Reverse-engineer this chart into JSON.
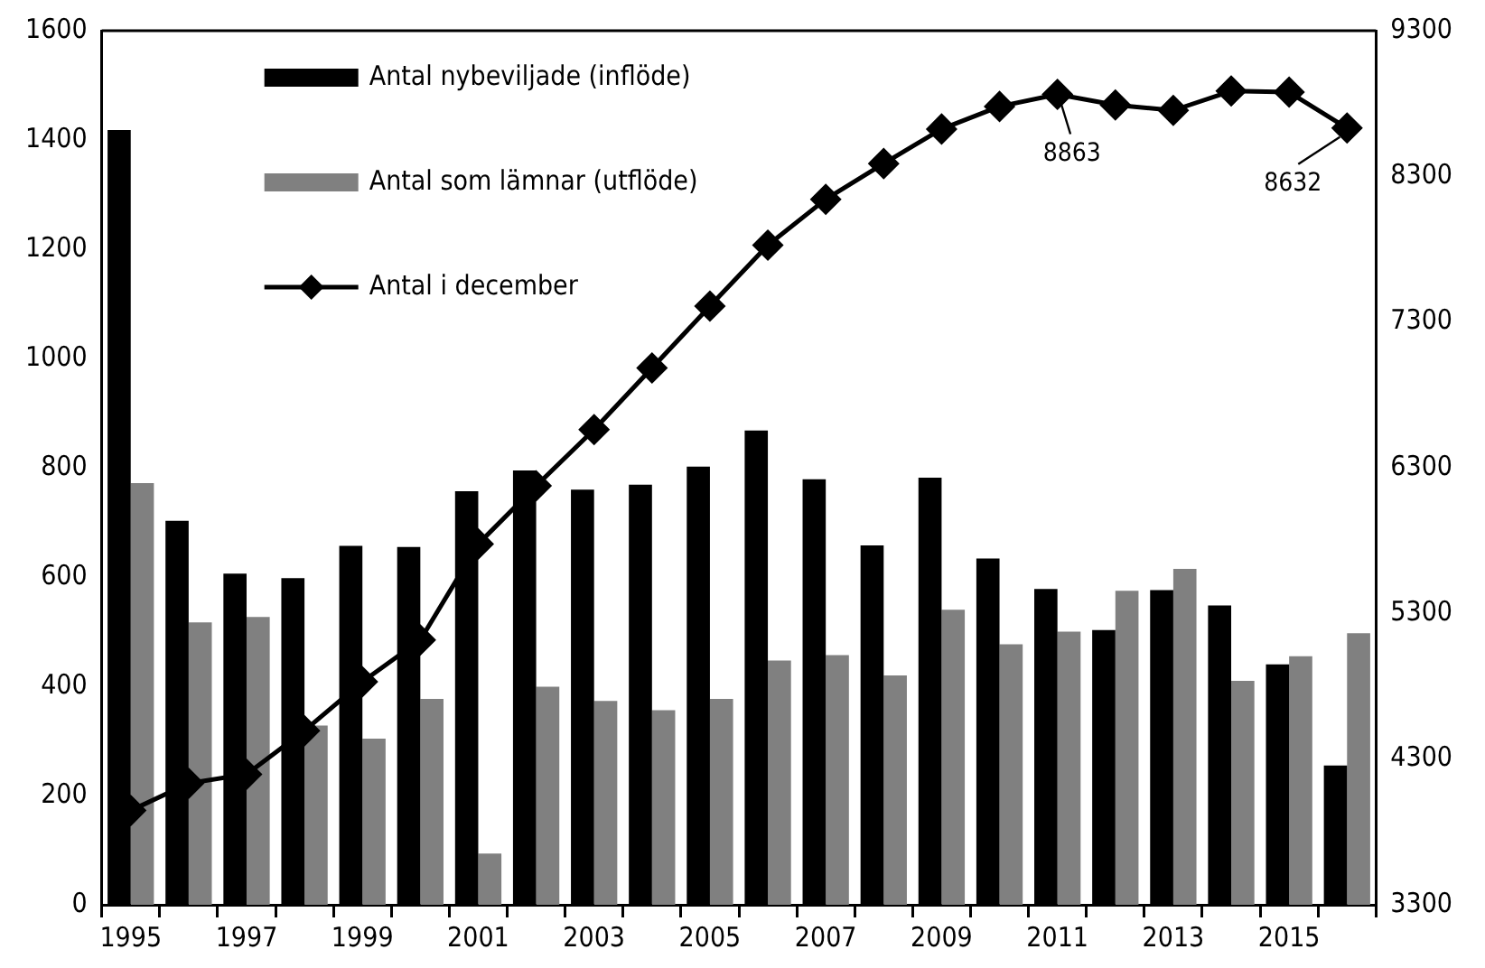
{
  "chart_data": {
    "type": "bar",
    "categories": [
      "1995",
      null,
      "1997",
      null,
      "1999",
      null,
      "2001",
      null,
      "2003",
      null,
      "2005",
      null,
      "2007",
      null,
      "2009",
      null,
      "2011",
      null,
      "2013",
      null,
      "2015",
      null
    ],
    "series": [
      {
        "name": "Antal nybeviljade (inflöde)",
        "color": "#000000",
        "values": [
          1418,
          703,
          606,
          598,
          657,
          655,
          757,
          795,
          760,
          769,
          802,
          868,
          779,
          658,
          782,
          634,
          578,
          503,
          576,
          548,
          440,
          255
        ]
      },
      {
        "name": "Antal som lämnar (utflöde)",
        "color": "#808080",
        "values": [
          772,
          517,
          527,
          328,
          304,
          377,
          94,
          399,
          373,
          356,
          377,
          447,
          457,
          420,
          540,
          477,
          500,
          575,
          615,
          410,
          455,
          497
        ]
      },
      {
        "name": "Antal i december",
        "type": "line",
        "axis": "y2",
        "color": "#000000",
        "marker": "diamond",
        "line_style": "solid",
        "values": [
          3947,
          4134,
          4196,
          4495,
          4831,
          5118,
          5777,
          6176,
          6562,
          6985,
          7409,
          7828,
          8143,
          8388,
          8625,
          8780,
          8863,
          8790,
          8753,
          8886,
          8878,
          8632
        ],
        "value_labels": [
          null,
          null,
          null,
          null,
          null,
          null,
          null,
          null,
          null,
          null,
          null,
          null,
          null,
          null,
          null,
          null,
          "8863",
          null,
          null,
          null,
          null,
          "8632"
        ]
      }
    ],
    "ylim": [
      0,
      1600
    ],
    "yticks": [
      0,
      200,
      400,
      600,
      800,
      1000,
      1200,
      1400,
      1600
    ],
    "y2lim": [
      3300,
      9300
    ],
    "y2ticks": [
      3300,
      4300,
      5300,
      6300,
      7300,
      8300,
      9300
    ],
    "grid": false,
    "legend": "top left"
  }
}
